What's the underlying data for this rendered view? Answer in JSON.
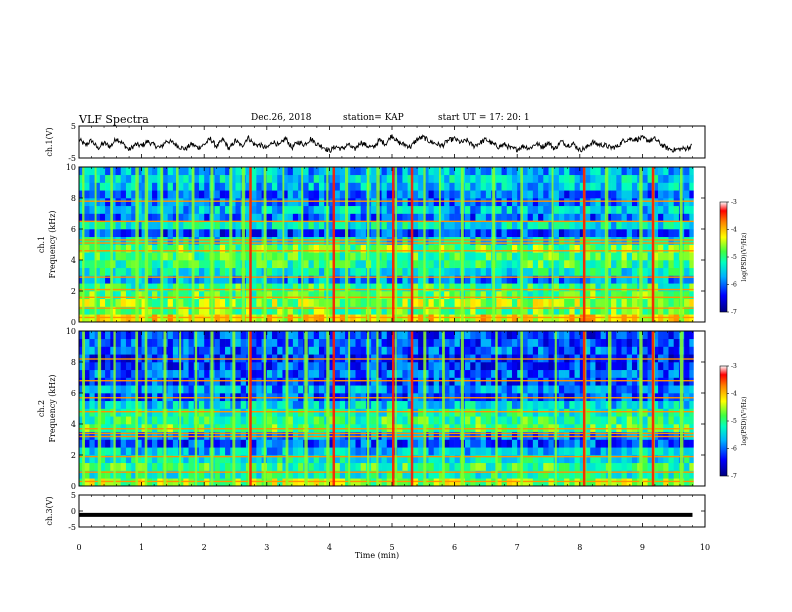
{
  "header": {
    "title": "VLF Spectra",
    "date": "Dec.26, 2018",
    "station": "station= KAP",
    "start": "start UT =   17: 20: 1"
  },
  "chart_data": [
    {
      "type": "line",
      "name": "ch1-waveform",
      "ylabel": "ch.1(V)",
      "yticks": [
        "5",
        "-5"
      ],
      "ylim": [
        -5,
        5
      ],
      "xlim": [
        0,
        10
      ],
      "trace": [
        [
          0.0,
          0.8
        ],
        [
          0.1,
          -1.0
        ],
        [
          0.2,
          0.5
        ],
        [
          0.3,
          -2.0
        ],
        [
          0.4,
          -0.3
        ],
        [
          0.5,
          -1.5
        ],
        [
          0.6,
          1.2
        ],
        [
          0.7,
          -0.5
        ],
        [
          0.8,
          -2.5
        ],
        [
          0.9,
          -0.8
        ],
        [
          1.0,
          -1.2
        ],
        [
          1.1,
          0.2
        ],
        [
          1.2,
          -1.0
        ],
        [
          1.3,
          -1.8
        ],
        [
          1.4,
          0.4
        ],
        [
          1.5,
          -0.2
        ],
        [
          1.6,
          -1.5
        ],
        [
          1.7,
          -2.2
        ],
        [
          1.8,
          -0.6
        ],
        [
          1.9,
          -1.8
        ],
        [
          2.0,
          -0.8
        ],
        [
          2.1,
          1.0
        ],
        [
          2.2,
          -1.5
        ],
        [
          2.3,
          0.8
        ],
        [
          2.4,
          -2.2
        ],
        [
          2.5,
          0.5
        ],
        [
          2.6,
          -1.4
        ],
        [
          2.7,
          1.5
        ],
        [
          2.8,
          -0.8
        ],
        [
          2.9,
          -1.0
        ],
        [
          3.0,
          -2.0
        ],
        [
          3.1,
          0.2
        ],
        [
          3.2,
          -1.2
        ],
        [
          3.3,
          1.2
        ],
        [
          3.4,
          -1.8
        ],
        [
          3.5,
          0.0
        ],
        [
          3.6,
          -0.8
        ],
        [
          3.7,
          1.0
        ],
        [
          3.8,
          -0.6
        ],
        [
          3.9,
          -1.5
        ],
        [
          4.0,
          -2.8
        ],
        [
          4.1,
          -1.4
        ],
        [
          4.2,
          -2.2
        ],
        [
          4.3,
          -0.8
        ],
        [
          4.4,
          -2.4
        ],
        [
          4.5,
          0.0
        ],
        [
          4.6,
          -1.2
        ],
        [
          4.7,
          -1.8
        ],
        [
          4.8,
          0.6
        ],
        [
          4.9,
          -0.6
        ],
        [
          5.0,
          2.2
        ],
        [
          5.1,
          -0.2
        ],
        [
          5.2,
          -0.8
        ],
        [
          5.3,
          -1.5
        ],
        [
          5.4,
          0.8
        ],
        [
          5.5,
          1.5
        ],
        [
          5.6,
          0.2
        ],
        [
          5.7,
          -0.5
        ],
        [
          5.8,
          -1.2
        ],
        [
          5.9,
          0.5
        ],
        [
          6.0,
          1.0
        ],
        [
          6.1,
          -0.2
        ],
        [
          6.2,
          0.5
        ],
        [
          6.3,
          -1.3
        ],
        [
          6.4,
          -0.3
        ],
        [
          6.5,
          0.8
        ],
        [
          6.6,
          -0.5
        ],
        [
          6.7,
          -1.5
        ],
        [
          6.8,
          -0.8
        ],
        [
          6.9,
          -2.0
        ],
        [
          7.0,
          -2.3
        ],
        [
          7.1,
          -1.2
        ],
        [
          7.2,
          -2.0
        ],
        [
          7.3,
          -0.5
        ],
        [
          7.4,
          -1.5
        ],
        [
          7.5,
          -0.2
        ],
        [
          7.6,
          -2.2
        ],
        [
          7.7,
          0.2
        ],
        [
          7.8,
          -1.0
        ],
        [
          7.9,
          -0.6
        ],
        [
          8.0,
          -2.5
        ],
        [
          8.1,
          -1.8
        ],
        [
          8.2,
          0.0
        ],
        [
          8.3,
          -0.8
        ],
        [
          8.4,
          -1.0
        ],
        [
          8.5,
          -1.8
        ],
        [
          8.6,
          -1.4
        ],
        [
          8.7,
          0.5
        ],
        [
          8.8,
          1.0
        ],
        [
          8.9,
          0.8
        ],
        [
          9.0,
          1.2
        ],
        [
          9.1,
          0.4
        ],
        [
          9.2,
          1.0
        ],
        [
          9.3,
          -0.8
        ],
        [
          9.4,
          -2.0
        ],
        [
          9.5,
          -2.5
        ],
        [
          9.6,
          -2.2
        ],
        [
          9.7,
          -2.0
        ],
        [
          9.8,
          -1.2
        ]
      ]
    },
    {
      "type": "heatmap",
      "name": "ch1-spectrogram",
      "ylabel_top": "ch.1",
      "ylabel": "Frequency (kHz)",
      "xlim": [
        0,
        10
      ],
      "ylim": [
        0,
        10
      ],
      "yticks": [
        "0",
        "2",
        "4",
        "6",
        "8",
        "10"
      ],
      "colorbar_label": "log(PSD)(V²/Hz)",
      "colorbar_ticks": [
        "-3",
        "-4",
        "-5",
        "-6",
        "-7"
      ],
      "colorbar_range": [
        -7,
        -3
      ],
      "bands": [
        {
          "y0": 0.0,
          "y1": 0.5,
          "v": -4.2
        },
        {
          "y0": 0.5,
          "y1": 1.0,
          "v": -4.8
        },
        {
          "y0": 1.0,
          "y1": 1.5,
          "v": -4.6
        },
        {
          "y0": 1.5,
          "y1": 2.0,
          "v": -4.9
        },
        {
          "y0": 2.0,
          "y1": 2.5,
          "v": -5.0
        },
        {
          "y0": 2.5,
          "y1": 3.0,
          "v": -5.8
        },
        {
          "y0": 3.0,
          "y1": 3.5,
          "v": -5.3
        },
        {
          "y0": 3.5,
          "y1": 4.0,
          "v": -5.0
        },
        {
          "y0": 4.0,
          "y1": 4.5,
          "v": -4.9
        },
        {
          "y0": 4.5,
          "y1": 5.0,
          "v": -4.8
        },
        {
          "y0": 5.0,
          "y1": 5.5,
          "v": -5.4
        },
        {
          "y0": 5.5,
          "y1": 6.0,
          "v": -6.2
        },
        {
          "y0": 6.0,
          "y1": 6.5,
          "v": -5.4
        },
        {
          "y0": 6.5,
          "y1": 7.0,
          "v": -6.0
        },
        {
          "y0": 7.0,
          "y1": 7.5,
          "v": -5.6
        },
        {
          "y0": 7.5,
          "y1": 8.0,
          "v": -5.9
        },
        {
          "y0": 8.0,
          "y1": 8.5,
          "v": -6.0
        },
        {
          "y0": 8.5,
          "y1": 9.0,
          "v": -5.6
        },
        {
          "y0": 9.0,
          "y1": 9.5,
          "v": -5.5
        },
        {
          "y0": 9.5,
          "y1": 10.0,
          "v": -5.7
        }
      ],
      "lines_khz": [
        0.3,
        0.9,
        1.6,
        2.1,
        2.9,
        4.6,
        5.1,
        5.3,
        6.5,
        7.8
      ],
      "bursts_min": [
        0.05,
        0.25,
        0.5,
        0.9,
        1.05,
        1.3,
        1.55,
        1.8,
        2.1,
        2.4,
        2.6,
        2.72,
        2.95,
        3.25,
        3.55,
        3.95,
        4.25,
        4.6,
        4.75,
        5.05,
        5.5,
        5.75,
        6.1,
        6.6,
        7.05,
        7.55,
        8.05,
        8.4,
        8.95,
        9.15,
        9.6
      ],
      "strong_bursts_min": [
        2.72,
        4.05,
        5.0,
        5.3,
        8.05,
        9.15
      ]
    },
    {
      "type": "heatmap",
      "name": "ch2-spectrogram",
      "ylabel_top": "ch.2",
      "ylabel": "Frequency (kHz)",
      "xlim": [
        0,
        10
      ],
      "ylim": [
        0,
        10
      ],
      "yticks": [
        "0",
        "2",
        "4",
        "6",
        "8",
        "10"
      ],
      "colorbar_label": "log(PSD)(V²/Hz)",
      "colorbar_ticks": [
        "-3",
        "-4",
        "-5",
        "-6",
        "-7"
      ],
      "colorbar_range": [
        -7,
        -3
      ],
      "bands": [
        {
          "y0": 0.0,
          "y1": 0.5,
          "v": -4.6
        },
        {
          "y0": 0.5,
          "y1": 1.0,
          "v": -5.2
        },
        {
          "y0": 1.0,
          "y1": 1.5,
          "v": -5.0
        },
        {
          "y0": 1.5,
          "y1": 2.0,
          "v": -5.3
        },
        {
          "y0": 2.0,
          "y1": 2.5,
          "v": -5.6
        },
        {
          "y0": 2.5,
          "y1": 3.0,
          "v": -6.1
        },
        {
          "y0": 3.0,
          "y1": 3.5,
          "v": -5.9
        },
        {
          "y0": 3.5,
          "y1": 4.0,
          "v": -4.9
        },
        {
          "y0": 4.0,
          "y1": 4.5,
          "v": -5.0
        },
        {
          "y0": 4.5,
          "y1": 5.0,
          "v": -5.2
        },
        {
          "y0": 5.0,
          "y1": 5.5,
          "v": -5.5
        },
        {
          "y0": 5.5,
          "y1": 6.0,
          "v": -6.1
        },
        {
          "y0": 6.0,
          "y1": 6.5,
          "v": -5.8
        },
        {
          "y0": 6.5,
          "y1": 7.0,
          "v": -6.2
        },
        {
          "y0": 7.0,
          "y1": 7.5,
          "v": -6.0
        },
        {
          "y0": 7.5,
          "y1": 8.0,
          "v": -6.2
        },
        {
          "y0": 8.0,
          "y1": 8.5,
          "v": -6.3
        },
        {
          "y0": 8.5,
          "y1": 9.0,
          "v": -6.0
        },
        {
          "y0": 9.0,
          "y1": 9.5,
          "v": -6.1
        },
        {
          "y0": 9.5,
          "y1": 10.0,
          "v": -6.2
        }
      ],
      "lines_khz": [
        0.3,
        0.9,
        1.9,
        3.2,
        3.4,
        3.7,
        4.8,
        5.7,
        6.8,
        8.2
      ],
      "bursts_min": [
        0.05,
        0.3,
        0.55,
        0.9,
        1.05,
        1.35,
        1.6,
        1.85,
        2.1,
        2.45,
        2.7,
        2.95,
        3.3,
        3.6,
        3.95,
        4.3,
        4.6,
        4.75,
        5.05,
        5.5,
        5.8,
        6.1,
        6.65,
        7.05,
        7.6,
        8.05,
        8.45,
        8.95,
        9.15,
        9.6
      ],
      "strong_bursts_min": [
        2.72,
        4.05,
        5.0,
        5.3,
        8.05,
        9.15
      ]
    },
    {
      "type": "line",
      "name": "ch3-waveform",
      "ylabel": "ch.3(V)",
      "yticks": [
        "5",
        "0",
        "-5"
      ],
      "ylim": [
        -5,
        5
      ],
      "xlim": [
        0,
        10
      ],
      "xlabel": "Time (min)",
      "xticks": [
        "0",
        "1",
        "2",
        "3",
        "4",
        "5",
        "6",
        "7",
        "8",
        "9",
        "10"
      ],
      "trace": [
        [
          0.0,
          -1.2
        ],
        [
          9.8,
          -1.2
        ]
      ]
    }
  ]
}
